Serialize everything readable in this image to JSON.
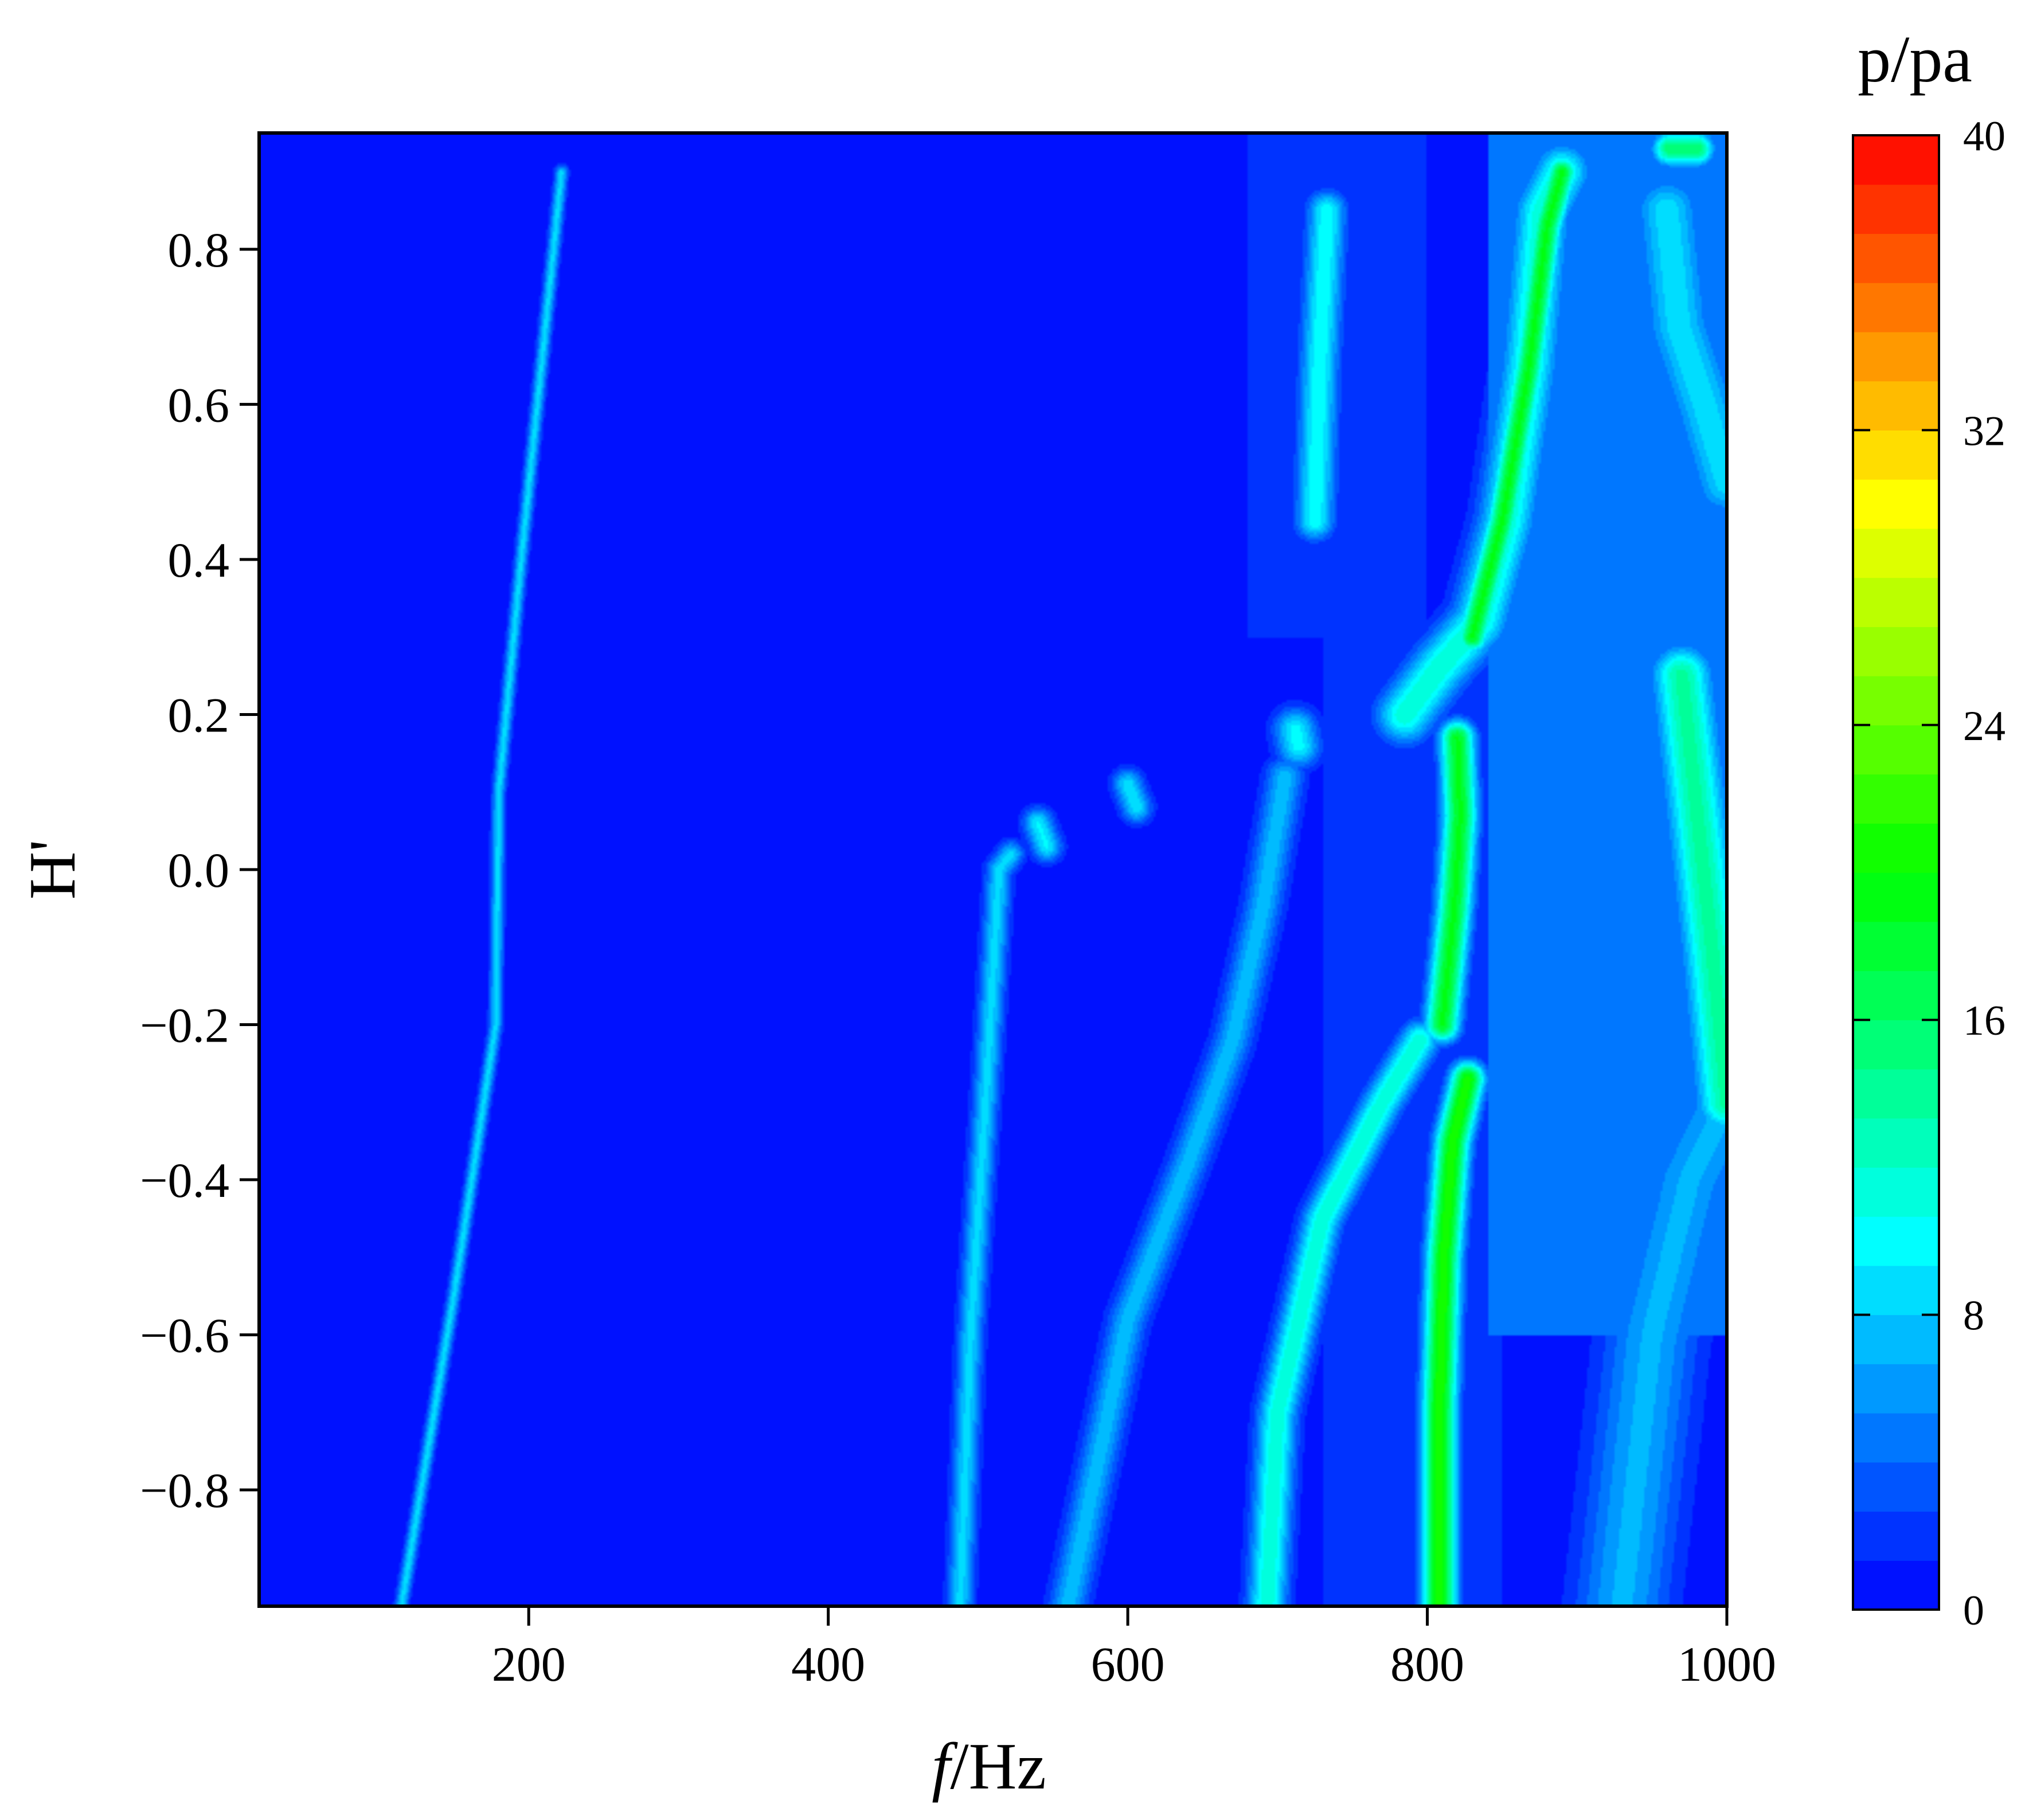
{
  "chart_data": {
    "type": "heatmap",
    "plot_style": "filled contour",
    "title": "",
    "xlabel_italic": "f",
    "xlabel_rest": "/Hz",
    "ylabel": "H'",
    "xlim": [
      20,
      1000
    ],
    "ylim": [
      -0.95,
      0.95
    ],
    "x_ticks": [
      200,
      400,
      600,
      800,
      1000
    ],
    "x_tick_labels": [
      "200",
      "400",
      "600",
      "800",
      "1000"
    ],
    "y_ticks": [
      0.8,
      0.6,
      0.4,
      0.2,
      0.0,
      -0.2,
      -0.4,
      -0.6,
      -0.8
    ],
    "y_tick_labels": [
      "0.8",
      "0.6",
      "0.4",
      "0.2",
      "0.0",
      "−0.2",
      "−0.4",
      "−0.6",
      "−0.8"
    ],
    "colorbar": {
      "title": "p/pa",
      "range": [
        0,
        40
      ],
      "levels": 30,
      "ticks": [
        0,
        8,
        16,
        24,
        32,
        40
      ],
      "tick_labels": [
        "0",
        "8",
        "16",
        "24",
        "32",
        "40"
      ]
    },
    "background_value": 0.5,
    "ridges": [
      {
        "peak": 8.5,
        "width_hz": 3,
        "points": [
          [
            115,
            -0.95
          ],
          [
            150,
            -0.55
          ],
          [
            178,
            -0.2
          ],
          [
            180,
            0.1
          ],
          [
            195,
            0.4
          ],
          [
            222,
            0.9
          ]
        ]
      },
      {
        "peak": 8.5,
        "width_hz": 6,
        "points": [
          [
            488,
            -0.95
          ],
          [
            495,
            -0.6
          ],
          [
            505,
            -0.3
          ],
          [
            514,
            0.0
          ],
          [
            522,
            0.02
          ]
        ]
      },
      {
        "peak": 9.5,
        "width_hz": 7,
        "points": [
          [
            540,
            0.06
          ],
          [
            546,
            0.03
          ]
        ]
      },
      {
        "peak": 9,
        "width_hz": 7,
        "points": [
          [
            600,
            0.11
          ],
          [
            606,
            0.08
          ]
        ]
      },
      {
        "peak": 7.5,
        "width_hz": 9,
        "points": [
          [
            560,
            -0.95
          ],
          [
            600,
            -0.58
          ],
          [
            640,
            -0.38
          ],
          [
            670,
            -0.22
          ],
          [
            690,
            -0.05
          ],
          [
            705,
            0.12
          ]
        ]
      },
      {
        "peak": 12,
        "width_hz": 9,
        "points": [
          [
            693,
            -0.95
          ],
          [
            700,
            -0.7
          ],
          [
            730,
            -0.45
          ],
          [
            770,
            -0.3
          ],
          [
            795,
            -0.22
          ]
        ]
      },
      {
        "peak": 10,
        "width_hz": 10,
        "points": [
          [
            712,
            0.18
          ],
          [
            714,
            0.16
          ]
        ]
      },
      {
        "peak": 10.5,
        "width_hz": 9,
        "points": [
          [
            725,
            0.45
          ],
          [
            728,
            0.65
          ],
          [
            733,
            0.85
          ]
        ]
      },
      {
        "peak": 21,
        "width_hz": 8,
        "points": [
          [
            808,
            -0.95
          ],
          [
            808,
            -0.7
          ],
          [
            811,
            -0.5
          ],
          [
            817,
            -0.35
          ],
          [
            827,
            -0.27
          ]
        ]
      },
      {
        "peak": 19,
        "width_hz": 8,
        "points": [
          [
            810,
            -0.2
          ],
          [
            818,
            -0.05
          ],
          [
            822,
            0.07
          ],
          [
            820,
            0.17
          ]
        ]
      },
      {
        "peak": 12,
        "width_hz": 13,
        "points": [
          [
            785,
            0.2
          ],
          [
            808,
            0.26
          ],
          [
            835,
            0.32
          ],
          [
            853,
            0.45
          ],
          [
            868,
            0.65
          ],
          [
            877,
            0.85
          ],
          [
            890,
            0.9
          ]
        ]
      },
      {
        "peak": 19,
        "width_hz": 7,
        "points": [
          [
            830,
            0.3
          ],
          [
            850,
            0.45
          ],
          [
            868,
            0.65
          ],
          [
            880,
            0.83
          ],
          [
            890,
            0.9
          ]
        ]
      },
      {
        "peak": 7,
        "width_hz": 22,
        "points": [
          [
            930,
            -0.95
          ],
          [
            950,
            -0.6
          ],
          [
            975,
            -0.4
          ],
          [
            1000,
            -0.3
          ]
        ]
      },
      {
        "peak": 14,
        "width_hz": 14,
        "points": [
          [
            970,
            0.25
          ],
          [
            990,
            -0.1
          ],
          [
            1000,
            -0.3
          ]
        ]
      },
      {
        "peak": 9,
        "width_hz": 16,
        "points": [
          [
            960,
            0.85
          ],
          [
            968,
            0.7
          ],
          [
            985,
            0.6
          ],
          [
            1000,
            0.5
          ]
        ]
      },
      {
        "peak": 16,
        "width_hz": 8,
        "points": [
          [
            962,
            0.93
          ],
          [
            980,
            0.93
          ]
        ]
      }
    ],
    "patches": [
      {
        "value": 4.5,
        "x": [
          840,
          1000
        ],
        "y": [
          -0.6,
          0.95
        ]
      },
      {
        "value": 2.0,
        "x": [
          730,
          850
        ],
        "y": [
          -0.95,
          0.3
        ]
      },
      {
        "value": 1.5,
        "x": [
          680,
          800
        ],
        "y": [
          0.3,
          0.95
        ]
      }
    ]
  }
}
